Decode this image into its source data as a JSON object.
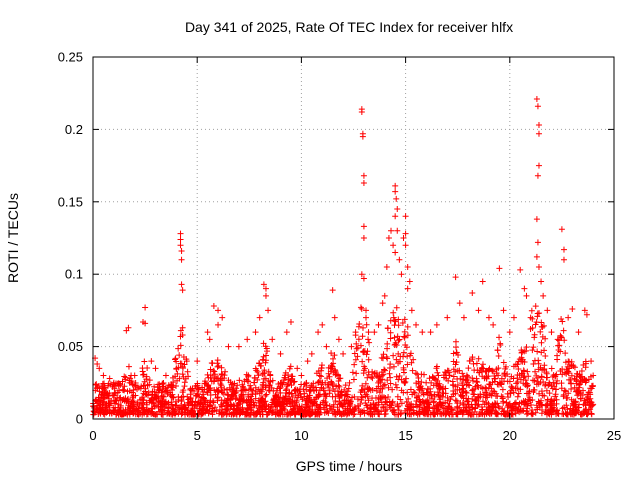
{
  "chart_data": {
    "type": "scatter",
    "title": "Day 341 of 2025, Rate Of TEC Index for receiver hlfx",
    "xlabel": "GPS time / hours",
    "ylabel": "ROTI / TECUs",
    "xlim": [
      0,
      25
    ],
    "ylim": [
      0,
      0.25
    ],
    "xticks": [
      "0",
      "5",
      "10",
      "15",
      "20",
      "25"
    ],
    "yticks": [
      "0",
      "0.05",
      "0.1",
      "0.15",
      "0.2",
      "0.25"
    ],
    "grid": true,
    "marker": "plus",
    "color": "#ff0000",
    "series": [
      {
        "name": "ROTI",
        "points": [
          [
            0.1,
            0.042
          ],
          [
            0.2,
            0.038
          ],
          [
            0.3,
            0.035
          ],
          [
            0.5,
            0.03
          ],
          [
            0.8,
            0.028
          ],
          [
            1.0,
            0.025
          ],
          [
            1.6,
            0.061
          ],
          [
            1.7,
            0.063
          ],
          [
            2.0,
            0.03
          ],
          [
            2.4,
            0.067
          ],
          [
            2.5,
            0.066
          ],
          [
            2.5,
            0.077
          ],
          [
            2.8,
            0.04
          ],
          [
            3.0,
            0.035
          ],
          [
            3.5,
            0.03
          ],
          [
            4.0,
            0.035
          ],
          [
            4.2,
            0.128
          ],
          [
            4.2,
            0.124
          ],
          [
            4.2,
            0.12
          ],
          [
            4.25,
            0.116
          ],
          [
            4.25,
            0.11
          ],
          [
            4.25,
            0.093
          ],
          [
            4.3,
            0.089
          ],
          [
            4.3,
            0.063
          ],
          [
            4.3,
            0.058
          ],
          [
            4.5,
            0.04
          ],
          [
            5.0,
            0.04
          ],
          [
            5.5,
            0.06
          ],
          [
            5.6,
            0.055
          ],
          [
            5.8,
            0.078
          ],
          [
            6.0,
            0.075
          ],
          [
            6.2,
            0.07
          ],
          [
            6.0,
            0.065
          ],
          [
            6.5,
            0.05
          ],
          [
            7.0,
            0.05
          ],
          [
            7.4,
            0.055
          ],
          [
            7.8,
            0.06
          ],
          [
            8.0,
            0.07
          ],
          [
            8.2,
            0.093
          ],
          [
            8.3,
            0.09
          ],
          [
            8.3,
            0.085
          ],
          [
            8.4,
            0.075
          ],
          [
            8.6,
            0.055
          ],
          [
            9.0,
            0.045
          ],
          [
            9.3,
            0.06
          ],
          [
            9.5,
            0.067
          ],
          [
            9.8,
            0.035
          ],
          [
            10.0,
            0.03
          ],
          [
            10.3,
            0.04
          ],
          [
            10.5,
            0.045
          ],
          [
            10.8,
            0.06
          ],
          [
            11.0,
            0.065
          ],
          [
            11.2,
            0.05
          ],
          [
            11.5,
            0.089
          ],
          [
            11.6,
            0.07
          ],
          [
            11.8,
            0.055
          ],
          [
            12.0,
            0.045
          ],
          [
            12.4,
            0.05
          ],
          [
            12.6,
            0.06
          ],
          [
            12.9,
            0.214
          ],
          [
            12.9,
            0.212
          ],
          [
            12.95,
            0.197
          ],
          [
            12.95,
            0.195
          ],
          [
            13.0,
            0.168
          ],
          [
            13.0,
            0.163
          ],
          [
            13.0,
            0.133
          ],
          [
            13.0,
            0.125
          ],
          [
            12.9,
            0.1
          ],
          [
            13.0,
            0.097
          ],
          [
            13.1,
            0.075
          ],
          [
            13.1,
            0.07
          ],
          [
            13.2,
            0.055
          ],
          [
            13.5,
            0.06
          ],
          [
            13.7,
            0.065
          ],
          [
            13.9,
            0.08
          ],
          [
            14.0,
            0.085
          ],
          [
            14.1,
            0.105
          ],
          [
            14.2,
            0.125
          ],
          [
            14.3,
            0.13
          ],
          [
            14.5,
            0.161
          ],
          [
            14.5,
            0.157
          ],
          [
            14.55,
            0.152
          ],
          [
            14.6,
            0.145
          ],
          [
            14.5,
            0.14
          ],
          [
            14.6,
            0.13
          ],
          [
            14.4,
            0.12
          ],
          [
            14.5,
            0.115
          ],
          [
            14.7,
            0.11
          ],
          [
            14.8,
            0.1
          ],
          [
            15.0,
            0.14
          ],
          [
            15.0,
            0.128
          ],
          [
            14.9,
            0.125
          ],
          [
            15.0,
            0.12
          ],
          [
            15.1,
            0.105
          ],
          [
            15.2,
            0.095
          ],
          [
            15.1,
            0.09
          ],
          [
            15.3,
            0.075
          ],
          [
            15.5,
            0.065
          ],
          [
            15.8,
            0.06
          ],
          [
            16.2,
            0.06
          ],
          [
            16.5,
            0.065
          ],
          [
            17.0,
            0.07
          ],
          [
            17.4,
            0.098
          ],
          [
            17.6,
            0.08
          ],
          [
            17.8,
            0.07
          ],
          [
            18.2,
            0.087
          ],
          [
            18.5,
            0.075
          ],
          [
            18.7,
            0.095
          ],
          [
            19.0,
            0.07
          ],
          [
            19.2,
            0.065
          ],
          [
            19.5,
            0.104
          ],
          [
            19.7,
            0.075
          ],
          [
            20.0,
            0.06
          ],
          [
            20.2,
            0.07
          ],
          [
            20.5,
            0.103
          ],
          [
            20.7,
            0.09
          ],
          [
            20.8,
            0.085
          ],
          [
            21.0,
            0.07
          ],
          [
            21.3,
            0.221
          ],
          [
            21.35,
            0.216
          ],
          [
            21.4,
            0.203
          ],
          [
            21.4,
            0.197
          ],
          [
            21.4,
            0.175
          ],
          [
            21.35,
            0.168
          ],
          [
            21.3,
            0.138
          ],
          [
            21.35,
            0.122
          ],
          [
            21.3,
            0.112
          ],
          [
            21.4,
            0.105
          ],
          [
            21.5,
            0.095
          ],
          [
            21.6,
            0.085
          ],
          [
            21.8,
            0.075
          ],
          [
            22.0,
            0.06
          ],
          [
            22.3,
            0.055
          ],
          [
            22.5,
            0.131
          ],
          [
            22.6,
            0.117
          ],
          [
            22.6,
            0.11
          ],
          [
            22.8,
            0.07
          ],
          [
            23.0,
            0.076
          ],
          [
            23.3,
            0.06
          ],
          [
            23.6,
            0.075
          ],
          [
            23.7,
            0.072
          ],
          [
            23.9,
            0.04
          ],
          [
            24.0,
            0.03
          ]
        ]
      }
    ]
  }
}
